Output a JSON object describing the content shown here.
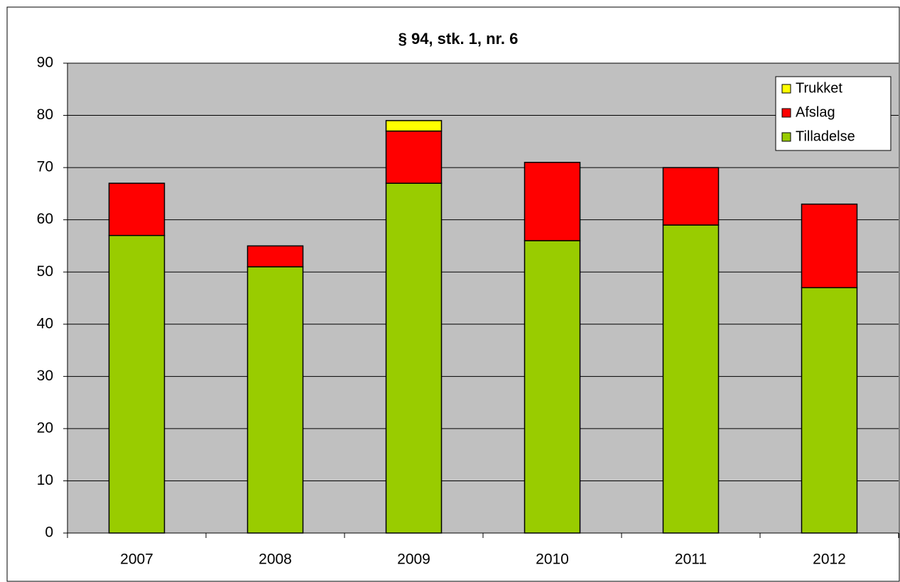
{
  "chart_data": {
    "type": "stacked_bar",
    "title": "§ 94, stk. 1, nr. 6",
    "categories": [
      "2007",
      "2008",
      "2009",
      "2010",
      "2011",
      "2012"
    ],
    "series": [
      {
        "name": "Tilladelse",
        "color": "#99cc00",
        "values": [
          57,
          51,
          67,
          56,
          59,
          47
        ]
      },
      {
        "name": "Afslag",
        "color": "#ff0000",
        "values": [
          10,
          4,
          10,
          15,
          11,
          16
        ]
      },
      {
        "name": "Trukket",
        "color": "#ffff00",
        "values": [
          0,
          0,
          2,
          0,
          0,
          0
        ]
      }
    ],
    "ylim": [
      0,
      90
    ],
    "yticks": [
      0,
      10,
      20,
      30,
      40,
      50,
      60,
      70,
      80,
      90
    ],
    "grid": true,
    "legend": "top-right"
  }
}
